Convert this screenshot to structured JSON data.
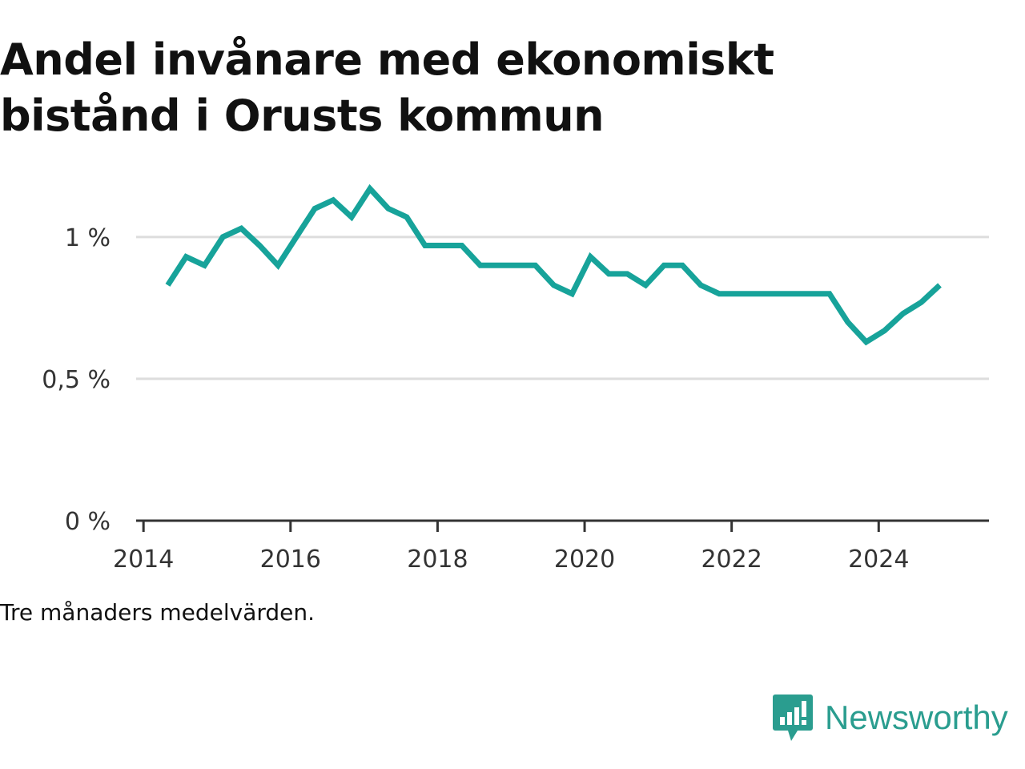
{
  "title": "Andel invånare med ekonomiskt bistånd i Orusts kommun",
  "note": "Tre månaders medelvärden.",
  "brand": {
    "name": "Newsworthy",
    "icon": "newsworthy-logo-icon",
    "color": "#2a9d8f"
  },
  "colors": {
    "line": "#17a39a",
    "grid": "#dddddd",
    "axis": "#333333"
  },
  "chart_data": {
    "type": "line",
    "title": "Andel invånare med ekonomiskt bistånd i Orusts kommun",
    "xlabel": "",
    "ylabel": "",
    "xlim": [
      2013.9,
      2025.5
    ],
    "ylim": [
      0,
      1.2
    ],
    "x_ticks": [
      2014,
      2016,
      2018,
      2020,
      2022,
      2024
    ],
    "x_tick_labels": [
      "2014",
      "2016",
      "2018",
      "2020",
      "2022",
      "2024"
    ],
    "y_ticks": [
      0,
      0.5,
      1
    ],
    "y_tick_labels": [
      "0 %",
      "0,5 %",
      "1 %"
    ],
    "grid": true,
    "legend": "none",
    "series": [
      {
        "x": [
          2014.33,
          2014.58,
          2014.83,
          2015.08,
          2015.33,
          2015.58,
          2015.83,
          2016.08,
          2016.33,
          2016.58,
          2016.83,
          2017.08,
          2017.33,
          2017.58,
          2017.83,
          2018.08,
          2018.33,
          2018.58,
          2018.83,
          2019.08,
          2019.33,
          2019.58,
          2019.83,
          2020.08,
          2020.33,
          2020.58,
          2020.83,
          2021.08,
          2021.33,
          2021.58,
          2021.83,
          2022.08,
          2022.33,
          2022.58,
          2022.83,
          2023.08,
          2023.33,
          2023.58,
          2023.83,
          2024.08,
          2024.33,
          2024.58,
          2024.83
        ],
        "values": [
          0.83,
          0.93,
          0.9,
          1.0,
          1.03,
          0.97,
          0.9,
          1.0,
          1.1,
          1.13,
          1.07,
          1.17,
          1.1,
          1.07,
          0.97,
          0.97,
          0.97,
          0.9,
          0.9,
          0.9,
          0.9,
          0.83,
          0.8,
          0.93,
          0.87,
          0.87,
          0.83,
          0.9,
          0.9,
          0.83,
          0.8,
          0.8,
          0.8,
          0.8,
          0.8,
          0.8,
          0.8,
          0.7,
          0.63,
          0.67,
          0.73,
          0.77,
          0.83
        ]
      }
    ]
  }
}
